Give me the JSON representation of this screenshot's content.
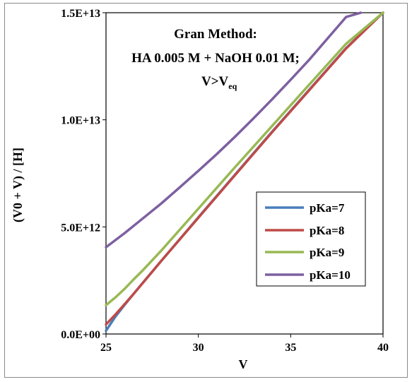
{
  "chart_data": {
    "type": "line",
    "title_lines": [
      "Gran Method:",
      "HA 0.005 M + NaOH 0.01 M;"
    ],
    "title_line3": {
      "base": "V>V",
      "sub": "eq"
    },
    "xlabel": "V",
    "ylabel": "(V0 + V) / [H]",
    "xlim": [
      25,
      40
    ],
    "ylim": [
      0,
      15000000000000
    ],
    "x_ticks": [
      25,
      30,
      35,
      40
    ],
    "x_tick_labels": [
      "25",
      "30",
      "35",
      "40"
    ],
    "y_ticks": [
      0,
      5000000000000,
      10000000000000,
      15000000000000
    ],
    "y_tick_labels": [
      "0.0E+00",
      "5.0E+12",
      "1.0E+13",
      "1.5E+13"
    ],
    "grid": false,
    "legend_position": "right",
    "series": [
      {
        "name": "pKa=7",
        "color": "#4a7ebb",
        "x": [
          25,
          25.5,
          26,
          26.5,
          27,
          28,
          30,
          32,
          34,
          36,
          38,
          40
        ],
        "y": [
          150000000000,
          800000000000,
          1350000000000,
          1880000000000,
          2400000000000,
          3420000000000,
          5450000000000,
          7450000000000,
          9450000000000,
          11400000000000,
          13350000000000,
          15000000000000
        ]
      },
      {
        "name": "pKa=8",
        "color": "#be4b48",
        "x": [
          25,
          25.5,
          26,
          26.5,
          27,
          28,
          30,
          32,
          34,
          36,
          38,
          40
        ],
        "y": [
          450000000000,
          900000000000,
          1380000000000,
          1880000000000,
          2390000000000,
          3420000000000,
          5430000000000,
          7430000000000,
          9430000000000,
          11380000000000,
          13330000000000,
          15000000000000
        ]
      },
      {
        "name": "pKa=9",
        "color": "#98b954",
        "x": [
          25,
          25.5,
          26,
          26.5,
          27,
          28,
          30,
          32,
          34,
          36,
          38,
          40
        ],
        "y": [
          1350000000000,
          1700000000000,
          2100000000000,
          2550000000000,
          2980000000000,
          3900000000000,
          5850000000000,
          7800000000000,
          9720000000000,
          11640000000000,
          13550000000000,
          15000000000000
        ]
      },
      {
        "name": "pKa=10",
        "color": "#7d60a0",
        "x": [
          25,
          26,
          27,
          28,
          29,
          30,
          31,
          32,
          33,
          34,
          35,
          36,
          37,
          38,
          38.8
        ],
        "y": [
          4050000000000,
          4700000000000,
          5400000000000,
          6100000000000,
          6850000000000,
          7620000000000,
          8400000000000,
          9220000000000,
          10080000000000,
          10960000000000,
          11870000000000,
          12800000000000,
          13800000000000,
          14800000000000,
          15000000000000
        ]
      }
    ]
  }
}
